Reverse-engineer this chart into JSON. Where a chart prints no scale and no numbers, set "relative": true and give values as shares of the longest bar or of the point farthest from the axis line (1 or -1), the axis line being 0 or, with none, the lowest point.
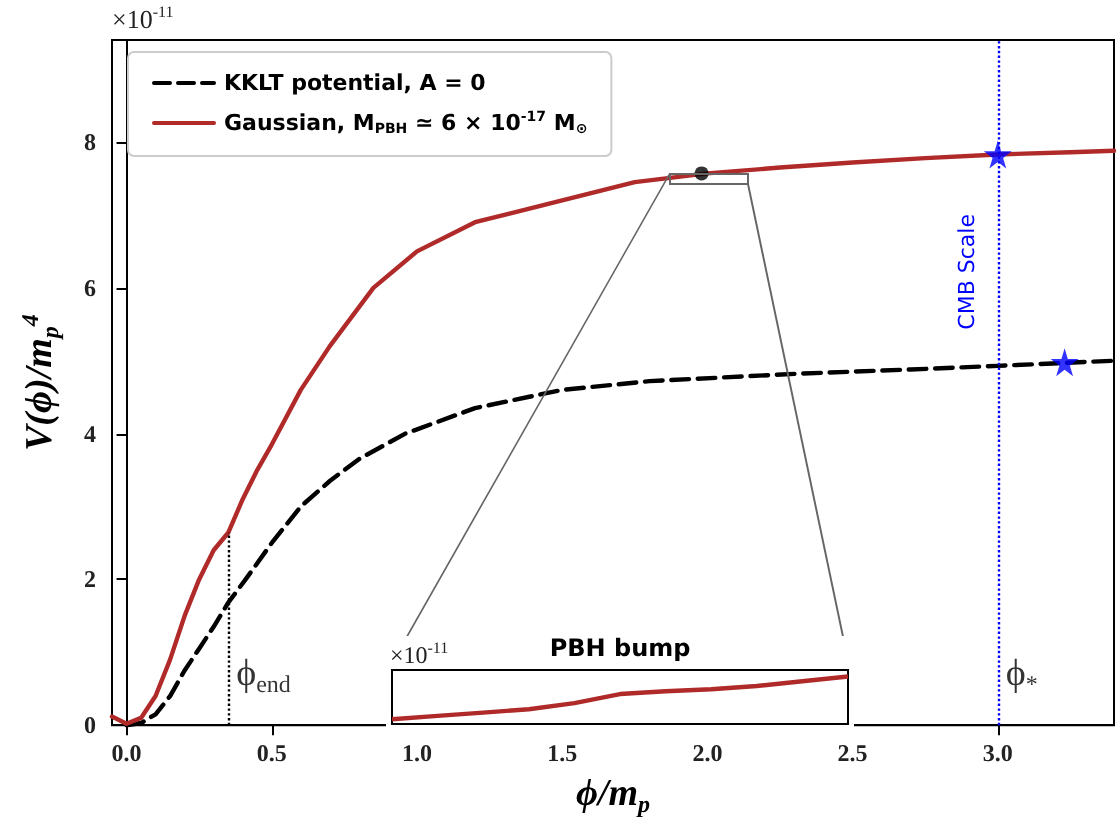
{
  "chart_data": [
    {
      "type": "line",
      "xlabel": "ϕ/m$_{p}$",
      "ylabel": "V(ϕ)/m$_{p}$$^{4}$",
      "annotations": [
        "×10$^{-11}$",
        {
          "text": "ϕ$_{end}$",
          "x": 0.35,
          "y": 0.7
        },
        {
          "text": "ϕ$_{*}$",
          "x": 3.0,
          "y": 0.7
        }
      ],
      "xlim": [
        -0.05,
        3.4
      ],
      "ylim": [
        0,
        9.4
      ],
      "xticks": [
        {
          "value": 0,
          "label": "0.0"
        },
        {
          "value": 0.5,
          "label": "0.5"
        },
        {
          "value": 1,
          "label": "1.0"
        },
        {
          "value": 1.5,
          "label": "1.5"
        },
        {
          "value": 2,
          "label": "2.0"
        },
        {
          "value": 2.5,
          "label": "2.5"
        },
        {
          "value": 3,
          "label": "3.0"
        }
      ],
      "yticks": [
        0,
        2,
        4,
        6,
        8
      ],
      "grid": false,
      "legend": "top left",
      "marker": "none",
      "series": [
        {
          "name": "KKLT potential, A = 0",
          "color": "#000000",
          "line_style": "dashed",
          "x": [
            0,
            0.05,
            0.1,
            0.15,
            0.2,
            0.25,
            0.3,
            0.35,
            0.41,
            0.5,
            0.6,
            0.7,
            0.8,
            0.96,
            1.2,
            1.5,
            1.8,
            2.3,
            2.7,
            3.0,
            3.4
          ],
          "values": [
            0,
            0.03,
            0.15,
            0.4,
            0.75,
            1.05,
            1.35,
            1.68,
            2.0,
            2.5,
            3.0,
            3.35,
            3.65,
            4.0,
            4.35,
            4.6,
            4.72,
            4.82,
            4.88,
            4.93,
            5.0
          ]
        },
        {
          "name": "Gaussian, M$_{PBH}$ ≃ 6 × 10$^{-17}$ M$_{⊙}$",
          "color": "#b02a2a",
          "line_style": "solid",
          "x": [
            -0.05,
            0,
            0.05,
            0.1,
            0.15,
            0.2,
            0.25,
            0.3,
            0.35,
            0.4,
            0.45,
            0.5,
            0.6,
            0.7,
            0.85,
            1.0,
            1.2,
            1.5,
            1.75,
            2.0,
            2.25,
            2.5,
            2.75,
            3.0,
            3.25,
            3.4
          ],
          "values": [
            0.12,
            0.02,
            0.1,
            0.4,
            0.9,
            1.5,
            2.0,
            2.4,
            2.64,
            3.1,
            3.5,
            3.85,
            4.6,
            5.2,
            6.0,
            6.5,
            6.9,
            7.2,
            7.45,
            7.57,
            7.65,
            7.72,
            7.78,
            7.83,
            7.86,
            7.88
          ]
        },
        {
          "type": "scatter",
          "color": "#0000ff",
          "marker": "star",
          "x": [
            3.0,
            3.23
          ],
          "values": [
            7.83,
            4.98
          ]
        },
        {
          "type": "scatter",
          "color": "#000000",
          "marker": "circle",
          "x": [
            1.98
          ],
          "values": [
            7.57
          ]
        }
      ],
      "ref_lines": [
        {
          "axis": "x",
          "value": 0.35,
          "color": "#000000",
          "line_style": "dotted"
        },
        {
          "axis": "x",
          "value": 3.0,
          "label": "CMB Scale",
          "color": "#0000ff",
          "line_style": "dotted"
        }
      ]
    },
    {
      "type": "line",
      "title": "PBH bump",
      "annotations": [
        "×10$^{-11}$"
      ],
      "relative": true,
      "categories": [
        null,
        null,
        null,
        null,
        null,
        null,
        null,
        null,
        null,
        null,
        null
      ],
      "series": [
        {
          "color": "#b02a2a",
          "values": [
            0.1,
            0.17,
            0.24,
            0.31,
            0.44,
            0.63,
            0.69,
            0.73,
            0.8,
            0.9,
            1
          ]
        }
      ]
    }
  ]
}
